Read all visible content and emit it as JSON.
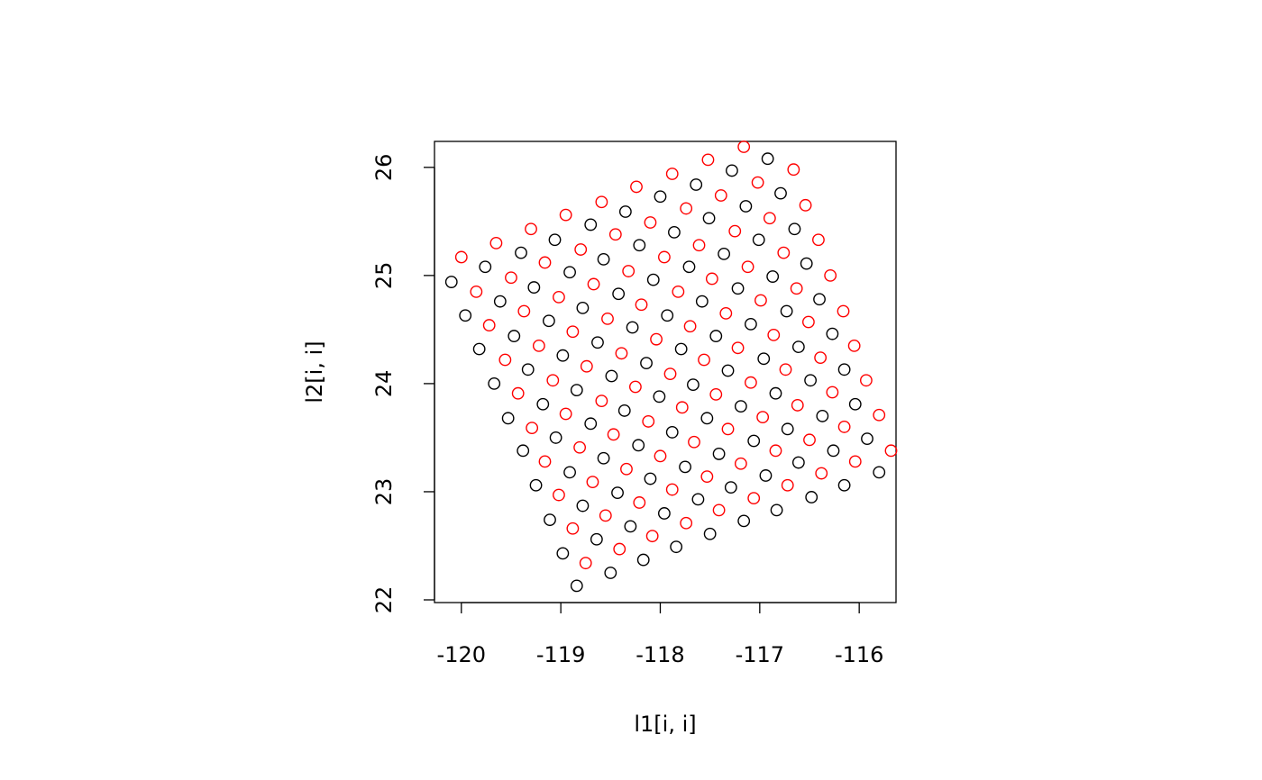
{
  "chart_data": {
    "type": "scatter",
    "xlabel": "l1[i, i]",
    "ylabel": "l2[i, i]",
    "xlim": [
      -120.27,
      -115.63
    ],
    "ylim": [
      21.975,
      26.24
    ],
    "xticks": [
      -120,
      -119,
      -118,
      -117,
      -116
    ],
    "yticks": [
      22,
      23,
      24,
      25,
      26
    ],
    "grid": false,
    "box": true,
    "series": [
      {
        "color": "#000000",
        "x": [
          -120.1,
          -119.76,
          -119.4,
          -119.06,
          -118.7,
          -118.35,
          -118.0,
          -117.64,
          -117.28,
          -116.92,
          -119.96,
          -119.61,
          -119.27,
          -118.91,
          -118.57,
          -118.21,
          -117.86,
          -117.51,
          -117.14,
          -116.79,
          -119.82,
          -119.47,
          -119.12,
          -118.78,
          -118.42,
          -118.07,
          -117.71,
          -117.36,
          -117.01,
          -116.65,
          -119.67,
          -119.33,
          -118.98,
          -118.63,
          -118.28,
          -117.93,
          -117.58,
          -117.22,
          -116.87,
          -116.53,
          -119.53,
          -119.18,
          -118.84,
          -118.49,
          -118.14,
          -117.79,
          -117.44,
          -117.09,
          -116.73,
          -116.4,
          -119.38,
          -119.05,
          -118.7,
          -118.36,
          -118.01,
          -117.67,
          -117.32,
          -116.96,
          -116.61,
          -116.27,
          -119.25,
          -118.91,
          -118.57,
          -118.22,
          -117.88,
          -117.53,
          -117.19,
          -116.84,
          -116.49,
          -116.15,
          -119.11,
          -118.78,
          -118.43,
          -118.1,
          -117.75,
          -117.41,
          -117.06,
          -116.72,
          -116.37,
          -116.04,
          -118.98,
          -118.64,
          -118.3,
          -117.96,
          -117.62,
          -117.29,
          -116.94,
          -116.61,
          -116.26,
          -115.92,
          -118.84,
          -118.5,
          -118.17,
          -117.84,
          -117.5,
          -117.16,
          -116.83,
          -116.48,
          -116.15,
          -115.8
        ],
        "values": [
          24.94,
          25.08,
          25.21,
          25.33,
          25.47,
          25.59,
          25.73,
          25.84,
          25.97,
          26.08,
          24.63,
          24.76,
          24.89,
          25.03,
          25.15,
          25.28,
          25.4,
          25.53,
          25.64,
          25.76,
          24.32,
          24.44,
          24.58,
          24.7,
          24.83,
          24.96,
          25.08,
          25.2,
          25.33,
          25.43,
          24.0,
          24.13,
          24.26,
          24.38,
          24.52,
          24.63,
          24.76,
          24.88,
          24.99,
          25.11,
          23.68,
          23.81,
          23.94,
          24.07,
          24.19,
          24.32,
          24.44,
          24.55,
          24.67,
          24.78,
          23.38,
          23.5,
          23.63,
          23.75,
          23.88,
          23.99,
          24.12,
          24.23,
          24.34,
          24.46,
          23.06,
          23.18,
          23.31,
          23.43,
          23.55,
          23.68,
          23.79,
          23.91,
          24.03,
          24.13,
          22.74,
          22.87,
          22.99,
          23.12,
          23.23,
          23.35,
          23.47,
          23.58,
          23.7,
          23.81,
          22.43,
          22.56,
          22.68,
          22.8,
          22.93,
          23.04,
          23.15,
          23.27,
          23.38,
          23.49,
          22.13,
          22.25,
          22.37,
          22.49,
          22.61,
          22.73,
          22.83,
          22.95,
          23.06,
          23.18
        ]
      },
      {
        "color": "#ff0000",
        "x": [
          -120.0,
          -119.65,
          -119.3,
          -118.95,
          -118.59,
          -118.24,
          -117.88,
          -117.52,
          -117.16,
          -119.85,
          -119.5,
          -119.16,
          -118.8,
          -118.45,
          -118.1,
          -117.74,
          -117.39,
          -117.02,
          -116.66,
          -119.72,
          -119.37,
          -119.02,
          -118.67,
          -118.32,
          -117.96,
          -117.61,
          -117.25,
          -116.9,
          -116.54,
          -119.56,
          -119.22,
          -118.88,
          -118.53,
          -118.19,
          -117.82,
          -117.48,
          -117.12,
          -116.76,
          -116.41,
          -119.43,
          -119.08,
          -118.74,
          -118.39,
          -118.04,
          -117.7,
          -117.34,
          -116.99,
          -116.63,
          -116.29,
          -119.29,
          -118.95,
          -118.59,
          -118.25,
          -117.9,
          -117.56,
          -117.22,
          -116.86,
          -116.51,
          -116.16,
          -119.16,
          -118.81,
          -118.47,
          -118.12,
          -117.78,
          -117.44,
          -117.09,
          -116.74,
          -116.39,
          -116.05,
          -119.02,
          -118.68,
          -118.34,
          -118.0,
          -117.66,
          -117.32,
          -116.97,
          -116.62,
          -116.27,
          -115.93,
          -118.88,
          -118.55,
          -118.21,
          -117.88,
          -117.53,
          -117.19,
          -116.84,
          -116.5,
          -116.15,
          -115.8,
          -118.75,
          -118.41,
          -118.08,
          -117.74,
          -117.41,
          -117.06,
          -116.72,
          -116.38,
          -116.04,
          -115.68
        ],
        "values": [
          25.17,
          25.3,
          25.43,
          25.56,
          25.68,
          25.82,
          25.94,
          26.07,
          26.19,
          24.85,
          24.98,
          25.12,
          25.24,
          25.38,
          25.49,
          25.62,
          25.74,
          25.86,
          25.98,
          24.54,
          24.67,
          24.8,
          24.92,
          25.04,
          25.17,
          25.28,
          25.41,
          25.53,
          25.65,
          24.22,
          24.35,
          24.48,
          24.6,
          24.73,
          24.85,
          24.97,
          25.08,
          25.21,
          25.33,
          23.91,
          24.03,
          24.16,
          24.28,
          24.41,
          24.53,
          24.65,
          24.77,
          24.88,
          25.0,
          23.59,
          23.72,
          23.84,
          23.97,
          24.09,
          24.22,
          24.33,
          24.45,
          24.57,
          24.67,
          23.28,
          23.41,
          23.53,
          23.65,
          23.78,
          23.9,
          24.01,
          24.13,
          24.24,
          24.35,
          22.97,
          23.09,
          23.21,
          23.33,
          23.46,
          23.58,
          23.69,
          23.8,
          23.92,
          24.03,
          22.66,
          22.78,
          22.9,
          23.02,
          23.14,
          23.26,
          23.38,
          23.48,
          23.6,
          23.71,
          22.34,
          22.47,
          22.59,
          22.71,
          22.83,
          22.94,
          23.06,
          23.17,
          23.28,
          23.38
        ]
      }
    ]
  }
}
